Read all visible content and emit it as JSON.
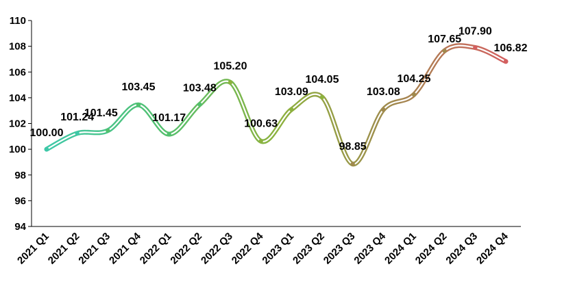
{
  "chart_data": {
    "type": "line",
    "title": "",
    "xlabel": "",
    "ylabel": "",
    "categories": [
      "2021 Q1",
      "2021 Q2",
      "2021 Q3",
      "2021 Q4",
      "2022 Q1",
      "2022 Q2",
      "2022 Q3",
      "2022 Q4",
      "2023 Q1",
      "2023 Q2",
      "2023 Q3",
      "2023 Q4",
      "2024 Q1",
      "2024 Q2",
      "2024 Q3",
      "2024 Q4"
    ],
    "series": [
      {
        "values": [
          100.0,
          101.24,
          101.45,
          103.45,
          101.17,
          103.48,
          105.2,
          100.63,
          103.09,
          104.05,
          98.85,
          103.08,
          104.25,
          107.65,
          107.9,
          106.82
        ],
        "labels": [
          "100.00",
          "101.24",
          "101.45",
          "103.45",
          "101.17",
          "103.48",
          "105.20",
          "100.63",
          "103.09",
          "104.05",
          "98.85",
          "103.08",
          "104.25",
          "107.65",
          "107.90",
          "106.82"
        ]
      }
    ],
    "ylim": [
      94,
      110
    ],
    "yticks": [
      94,
      96,
      98,
      100,
      102,
      104,
      106,
      108,
      110
    ],
    "grid": false,
    "legend": "none",
    "colors": [
      "#3ec8a8",
      "#52c06e",
      "#8cb23e",
      "#a08a4e",
      "#d36060"
    ]
  }
}
